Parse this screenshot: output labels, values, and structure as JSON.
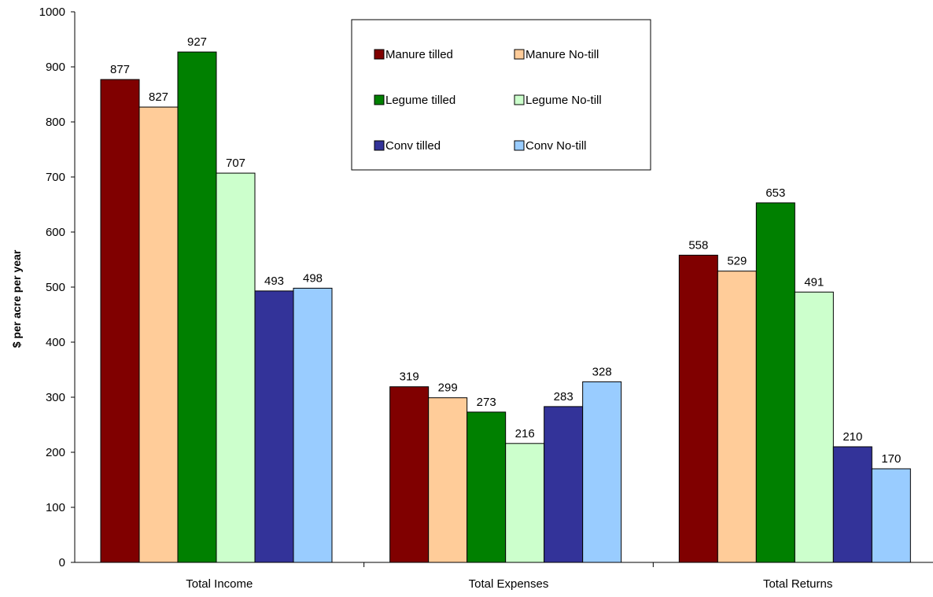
{
  "chart_data": {
    "type": "bar",
    "title": "",
    "xlabel": "",
    "ylabel": "$ per acre per year",
    "ylim": [
      0,
      1000
    ],
    "ytick_step": 100,
    "yticks": [
      "0",
      "100",
      "200",
      "300",
      "400",
      "500",
      "600",
      "700",
      "800",
      "900",
      "1000"
    ],
    "grid": false,
    "legend_position": "top-center",
    "categories": [
      "Total Income",
      "Total Expenses",
      "Total Returns"
    ],
    "series": [
      {
        "name": "Manure tilled",
        "color": "#800000",
        "values": [
          877,
          319,
          558
        ]
      },
      {
        "name": "Manure No-till",
        "color": "#FFCC99",
        "values": [
          827,
          299,
          529
        ]
      },
      {
        "name": "Legume tilled",
        "color": "#008000",
        "values": [
          927,
          273,
          653
        ]
      },
      {
        "name": "Legume No-till",
        "color": "#CCFFCC",
        "values": [
          707,
          216,
          491
        ]
      },
      {
        "name": "Conv tilled",
        "color": "#333399",
        "values": [
          493,
          283,
          210
        ]
      },
      {
        "name": "Conv No-till",
        "color": "#99CCFF",
        "values": [
          498,
          328,
          170
        ]
      }
    ]
  }
}
